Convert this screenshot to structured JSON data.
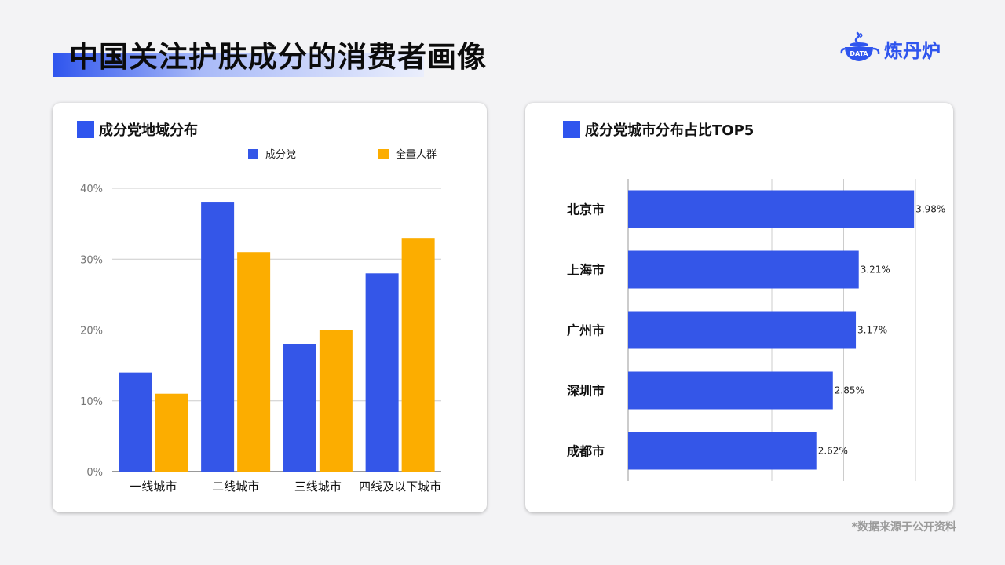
{
  "page": {
    "title": "中国关注护肤成分的消费者画像",
    "footnote": "*数据来源于公开资料"
  },
  "brand": {
    "name": "炼丹炉",
    "badge": "DATA",
    "icon": "alembic-logo-icon",
    "color": "#2f55ee"
  },
  "colors": {
    "primary": "#3456e8",
    "secondary": "#fcad00",
    "grid": "#cccccc",
    "axis": "#333333"
  },
  "left_card": {
    "heading": "成分党地域分布"
  },
  "right_card": {
    "heading": "成分党城市分布占比TOP5"
  },
  "chart_data": [
    {
      "type": "bar",
      "title": "成分党地域分布",
      "categories": [
        "一线城市",
        "二线城市",
        "三线城市",
        "四线及以下城市"
      ],
      "series": [
        {
          "name": "成分党",
          "values": [
            14,
            38,
            18,
            28
          ],
          "color": "#3456e8"
        },
        {
          "name": "全量人群",
          "values": [
            11,
            31,
            20,
            33
          ],
          "color": "#fcad00"
        }
      ],
      "y_ticks": [
        "0%",
        "10%",
        "20%",
        "30%",
        "40%"
      ],
      "ylim": [
        0,
        40
      ],
      "grid": true,
      "legend": "top-right"
    },
    {
      "type": "bar",
      "orientation": "horizontal",
      "title": "成分党城市分布占比TOP5",
      "categories": [
        "北京市",
        "上海市",
        "广州市",
        "深圳市",
        "成都市"
      ],
      "values": [
        3.98,
        3.21,
        3.17,
        2.85,
        2.62
      ],
      "data_labels": [
        "3.98%",
        "3.21%",
        "3.17%",
        "2.85%",
        "2.62%"
      ],
      "xlim": [
        0,
        4
      ],
      "grid": true,
      "legend": "none",
      "color": "#3456e8"
    }
  ]
}
